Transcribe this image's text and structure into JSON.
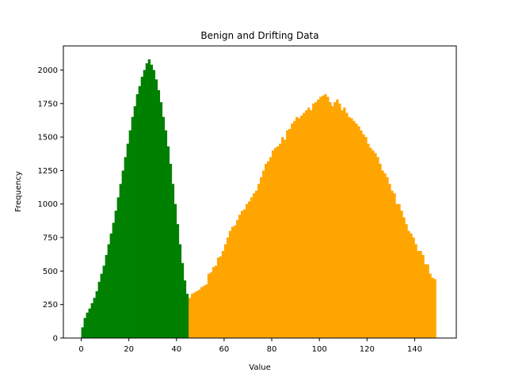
{
  "chart_data": {
    "type": "bar",
    "title": "Benign and Drifting Data",
    "xlabel": "Value",
    "ylabel": "Frequency",
    "xlim": [
      -7.5,
      157.5
    ],
    "ylim": [
      0,
      2180
    ],
    "xticks": [
      0,
      20,
      40,
      60,
      80,
      100,
      120,
      140
    ],
    "yticks": [
      0,
      250,
      500,
      750,
      1000,
      1250,
      1500,
      1750,
      2000
    ],
    "grid": false,
    "bin_width": 1,
    "series": [
      {
        "color": "#ffa500",
        "x_start": 25,
        "values": [
          70,
          95,
          100,
          100,
          105,
          110,
          110,
          120,
          125,
          150,
          130,
          170,
          150,
          180,
          190,
          200,
          200,
          240,
          260,
          250,
          300,
          330,
          340,
          350,
          360,
          380,
          390,
          400,
          480,
          490,
          530,
          540,
          600,
          610,
          650,
          700,
          750,
          800,
          830,
          840,
          880,
          920,
          950,
          960,
          1000,
          1020,
          1050,
          1080,
          1100,
          1150,
          1200,
          1250,
          1300,
          1320,
          1350,
          1400,
          1420,
          1430,
          1450,
          1500,
          1480,
          1550,
          1560,
          1600,
          1620,
          1650,
          1640,
          1660,
          1680,
          1700,
          1720,
          1700,
          1750,
          1760,
          1780,
          1800,
          1810,
          1820,
          1800,
          1760,
          1730,
          1760,
          1780,
          1750,
          1700,
          1720,
          1680,
          1650,
          1640,
          1620,
          1600,
          1580,
          1550,
          1520,
          1500,
          1450,
          1420,
          1400,
          1380,
          1350,
          1300,
          1250,
          1230,
          1200,
          1150,
          1100,
          1080,
          1000,
          1000,
          950,
          900,
          850,
          800,
          780,
          750,
          700,
          650,
          650,
          620,
          550,
          550,
          480,
          450,
          440
        ]
      },
      {
        "color": "#008000",
        "x_start": 0,
        "values": [
          80,
          150,
          190,
          220,
          260,
          300,
          350,
          420,
          480,
          540,
          620,
          700,
          780,
          860,
          950,
          1050,
          1150,
          1250,
          1350,
          1450,
          1550,
          1650,
          1730,
          1820,
          1880,
          1950,
          2000,
          2050,
          2080,
          2040,
          2000,
          1930,
          1850,
          1760,
          1650,
          1550,
          1430,
          1300,
          1150,
          1000,
          850,
          700,
          560,
          430,
          330
        ]
      }
    ]
  }
}
